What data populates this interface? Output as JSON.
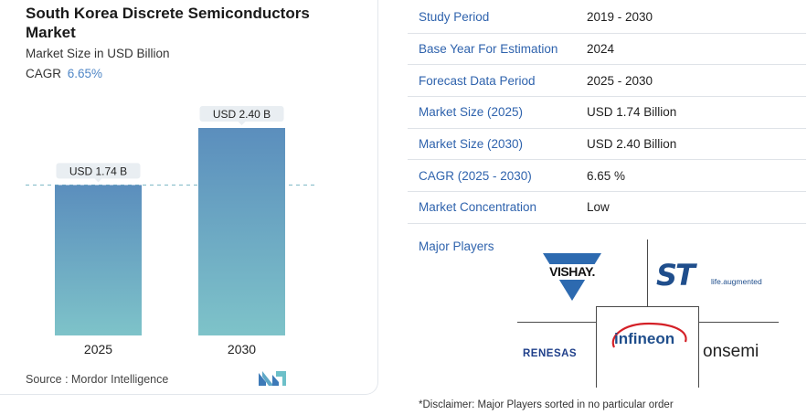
{
  "chart_card": {
    "title": "South Korea Discrete Semiconductors Market",
    "subtitle": "Market Size in USD Billion",
    "cagr_label": "CAGR",
    "cagr_value": "6.65%",
    "source": "Source : Mordor Intelligence"
  },
  "chart_data": {
    "type": "bar",
    "categories": [
      "2025",
      "2030"
    ],
    "values": [
      1.74,
      2.4
    ],
    "data_labels": [
      "USD 1.74 B",
      "USD 2.40 B"
    ],
    "title": "South Korea Discrete Semiconductors Market",
    "ylabel": "Market Size in USD Billion",
    "ylim": [
      0,
      2.4
    ],
    "reference_line": 1.74,
    "colors": {
      "bar_top": "#5b8ebd",
      "bar_bottom": "#7ec3c9",
      "label_bg": "#e9eef2",
      "dash": "#7ab6c4"
    }
  },
  "table": [
    {
      "key": "Study Period",
      "value": "2019 - 2030"
    },
    {
      "key": "Base Year For Estimation",
      "value": "2024"
    },
    {
      "key": "Forecast Data Period",
      "value": "2025 - 2030"
    },
    {
      "key": "Market Size (2025)",
      "value": "USD 1.74 Billion"
    },
    {
      "key": "Market Size (2030)",
      "value": "USD 2.40 Billion"
    },
    {
      "key": "CAGR (2025 - 2030)",
      "value": "6.65 %"
    },
    {
      "key": "Market Concentration",
      "value": "Low"
    }
  ],
  "major_players": {
    "label": "Major Players",
    "logos": {
      "vishay": "VISHAY.",
      "st_mark": "ST",
      "st_tagline": "life.augmented",
      "infineon": "infineon",
      "renesas": "RENESAS",
      "onsemi": "onsemi"
    }
  },
  "disclaimer": "*Disclaimer: Major Players sorted in no particular order"
}
